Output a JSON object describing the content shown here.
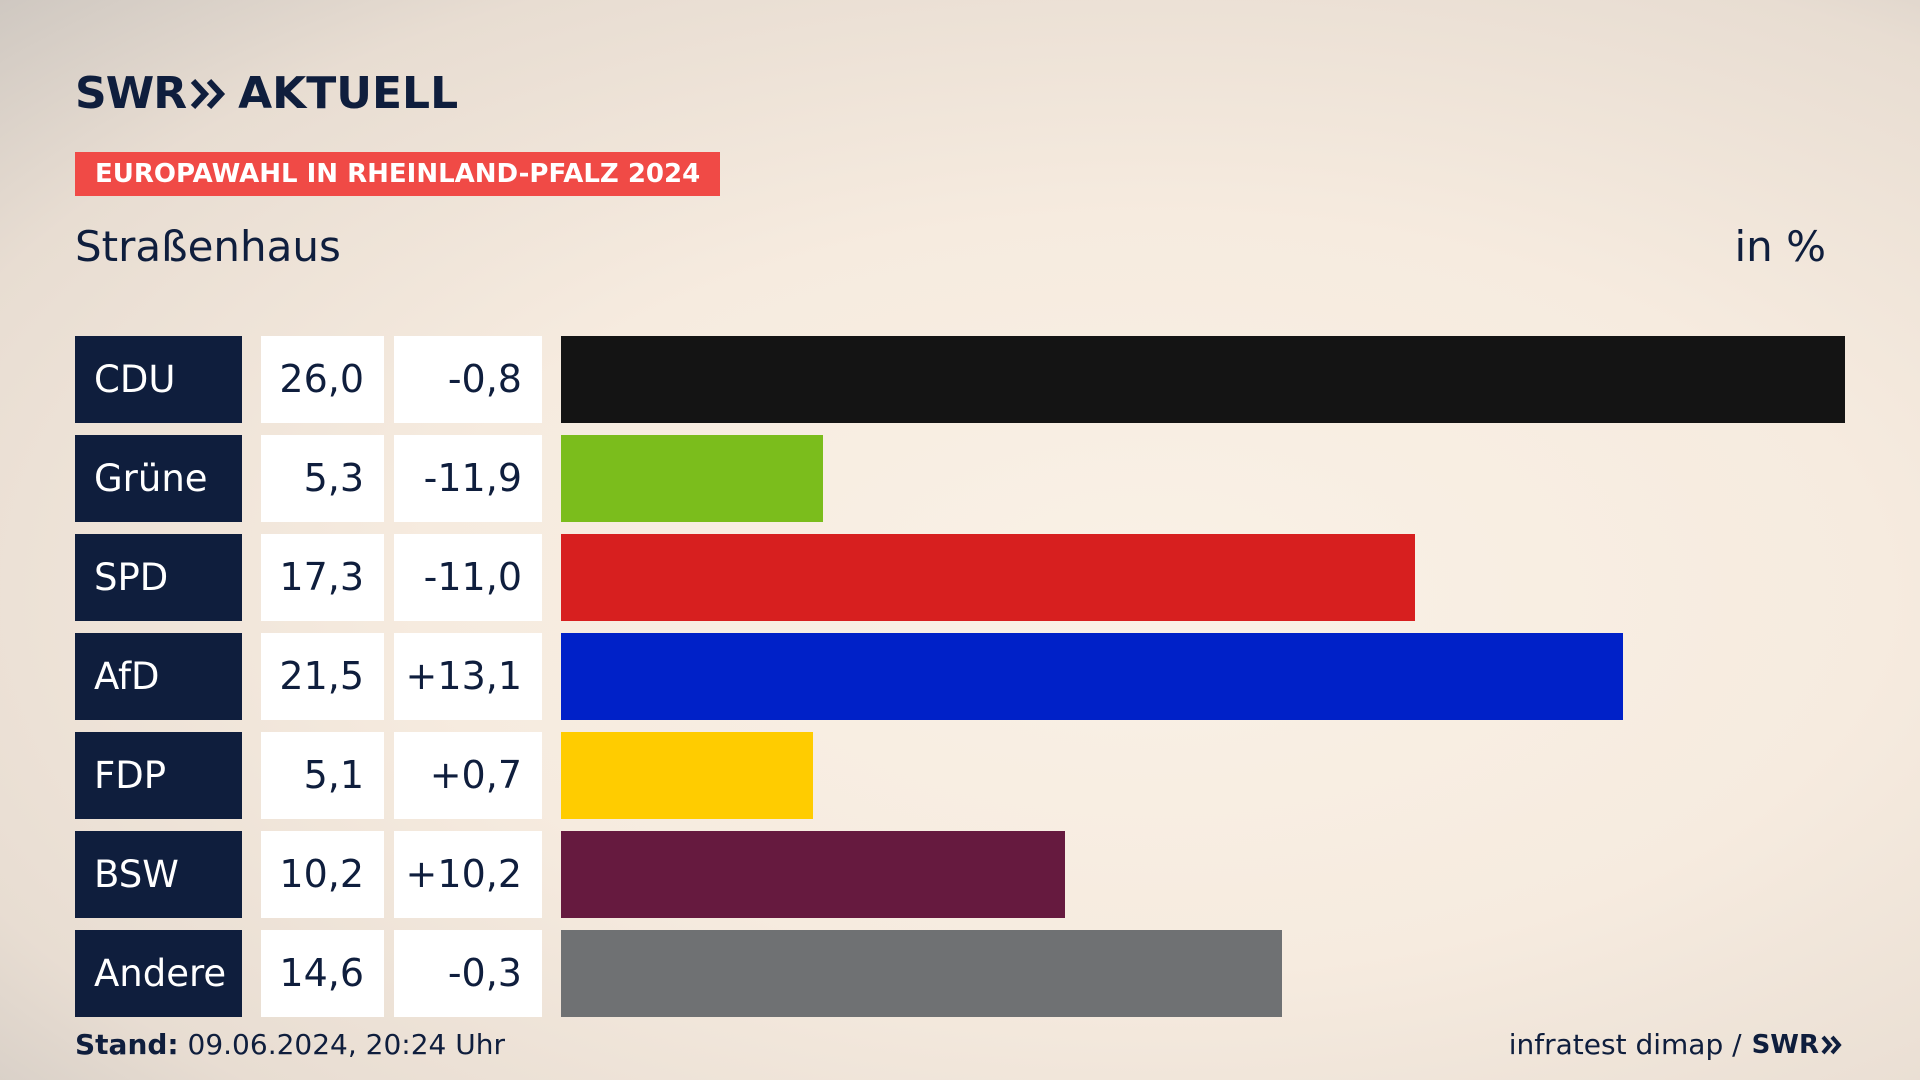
{
  "brand": {
    "swr": "SWR",
    "aktuell": "AKTUELL"
  },
  "kicker": "EUROPAWAHL IN RHEINLAND-PFALZ 2024",
  "place": "Straßenhaus",
  "unit": "in %",
  "footer": {
    "stand_label": "Stand:",
    "stand_value": "09.06.2024, 20:24 Uhr",
    "source": "infratest dimap /",
    "source_brand": "SWR"
  },
  "chart_data": {
    "type": "bar",
    "orientation": "horizontal",
    "title": "Straßenhaus",
    "unit": "in %",
    "categories": [
      "CDU",
      "Grüne",
      "SPD",
      "AfD",
      "FDP",
      "BSW",
      "Andere"
    ],
    "values": [
      26.0,
      5.3,
      17.3,
      21.5,
      5.1,
      10.2,
      14.6
    ],
    "value_labels": [
      "26,0",
      "5,3",
      "17,3",
      "21,5",
      "5,1",
      "10,2",
      "14,6"
    ],
    "diff_labels": [
      "-0,8",
      "-11,9",
      "-11,0",
      "+13,1",
      "+0,7",
      "+10,2",
      "-0,3"
    ],
    "colors": [
      "#141414",
      "#7bbd1c",
      "#d71f1f",
      "#0021c8",
      "#ffcc00",
      "#661a3f",
      "#6f7173"
    ],
    "xlim": [
      0,
      26.0
    ],
    "grid": false,
    "legend": "none"
  }
}
